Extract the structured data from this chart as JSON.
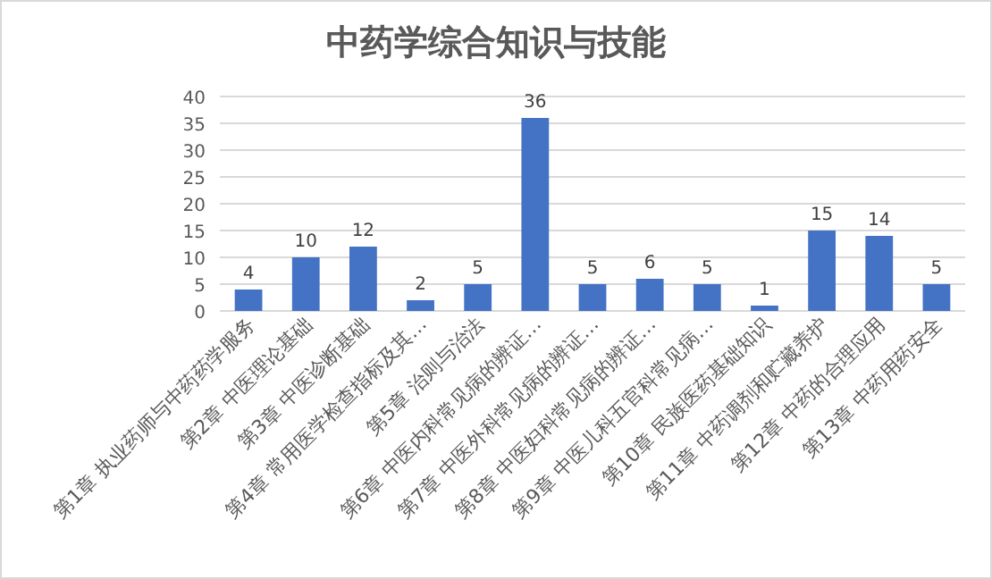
{
  "chart_data": {
    "type": "bar",
    "title": "中药学综合知识与技能",
    "categories": [
      "第1章 执业药师与中药药学服务",
      "第2章 中医理论基础",
      "第3章 中医诊断基础",
      "第4章 常用医学检查指标及其…",
      "第5章 治则与治法",
      "第6章 中医内科常见病的辨证…",
      "第7章 中医外科常见病的辨证…",
      "第8章 中医妇科常见病的辨证…",
      "第9章 中医儿科五官科常见病…",
      "第10章 民族医药基础知识",
      "第11章 中药调剂和贮藏养护",
      "第12章 中药的合理应用",
      "第13章 中药用药安全"
    ],
    "values": [
      4,
      10,
      12,
      2,
      5,
      36,
      5,
      6,
      5,
      1,
      15,
      14,
      5
    ],
    "color": "#4472c4",
    "ylim": [
      0,
      40
    ],
    "yticks": [
      0,
      5,
      10,
      15,
      20,
      25,
      30,
      35,
      40
    ],
    "grid": "y",
    "data_labels": true
  }
}
